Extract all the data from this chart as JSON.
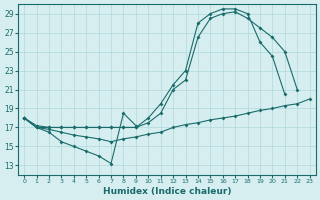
{
  "xlabel": "Humidex (Indice chaleur)",
  "background_color": "#d6eef0",
  "line_color": "#1a6b6b",
  "grid_color": "#b0d8dc",
  "xlim": [
    -0.5,
    23.5
  ],
  "ylim": [
    12,
    30
  ],
  "xticks": [
    0,
    1,
    2,
    3,
    4,
    5,
    6,
    7,
    8,
    9,
    10,
    11,
    12,
    13,
    14,
    15,
    16,
    17,
    18,
    19,
    20,
    21,
    22,
    23
  ],
  "yticks": [
    13,
    15,
    17,
    19,
    21,
    23,
    25,
    27,
    29
  ],
  "line_top": {
    "x": [
      0,
      1,
      2,
      3,
      4,
      5,
      6,
      7,
      8,
      9,
      10,
      11,
      12,
      13,
      14,
      15,
      16,
      17,
      18,
      19,
      20,
      21,
      22
    ],
    "y": [
      18,
      17,
      17,
      17,
      17,
      17,
      17,
      17,
      17,
      17,
      17.5,
      18.5,
      21,
      22,
      26.5,
      28.5,
      29,
      29.2,
      28.5,
      27.5,
      26.5,
      25,
      21
    ]
  },
  "line_mid": {
    "x": [
      0,
      1,
      2,
      3,
      4,
      5,
      6,
      7,
      8,
      9,
      10,
      11,
      12,
      13,
      14,
      15,
      16,
      17,
      18,
      19,
      20,
      21
    ],
    "y": [
      18,
      17.2,
      17,
      17,
      17,
      17,
      17,
      17,
      17,
      17,
      18,
      19.5,
      21.5,
      23,
      28,
      29,
      29.5,
      29.5,
      29,
      26,
      24.5,
      20.5
    ]
  },
  "line_diag": {
    "x": [
      0,
      1,
      2,
      3,
      4,
      5,
      6,
      7,
      8,
      9,
      10,
      11,
      12,
      13,
      14,
      15,
      16,
      17,
      18,
      19,
      20,
      21,
      22,
      23
    ],
    "y": [
      18,
      17,
      16.8,
      16.5,
      16.2,
      16,
      15.8,
      15.5,
      15.8,
      16,
      16.3,
      16.5,
      17,
      17.3,
      17.5,
      17.8,
      18,
      18.2,
      18.5,
      18.8,
      19,
      19.3,
      19.5,
      20
    ]
  },
  "line_zigzag": {
    "x": [
      0,
      1,
      2,
      3,
      4,
      5,
      6,
      7,
      8,
      9
    ],
    "y": [
      18,
      17,
      16.5,
      15.5,
      15,
      14.5,
      14,
      13.2,
      18.5,
      17.2
    ]
  }
}
